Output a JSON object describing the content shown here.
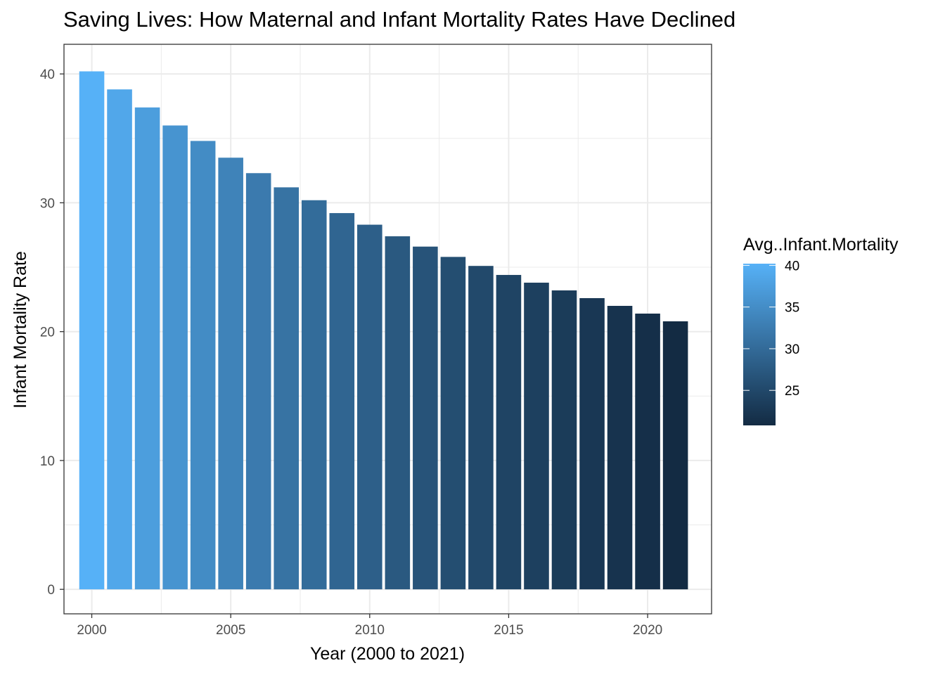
{
  "chart_data": {
    "type": "bar",
    "title": "Saving Lives: How Maternal and Infant Mortality Rates Have Declined",
    "xlabel": "Year (2000 to 2021)",
    "ylabel": "Infant Mortality Rate",
    "x": [
      2000,
      2001,
      2002,
      2003,
      2004,
      2005,
      2006,
      2007,
      2008,
      2009,
      2010,
      2011,
      2012,
      2013,
      2014,
      2015,
      2016,
      2017,
      2018,
      2019,
      2020,
      2021
    ],
    "values": [
      40.2,
      38.8,
      37.4,
      36.0,
      34.8,
      33.5,
      32.3,
      31.2,
      30.2,
      29.2,
      28.3,
      27.4,
      26.6,
      25.8,
      25.1,
      24.4,
      23.8,
      23.2,
      22.6,
      22.0,
      21.4,
      20.8
    ],
    "xlim": [
      1999,
      2022.3
    ],
    "ylim": [
      -1.9,
      42.3
    ],
    "x_ticks": [
      2000,
      2005,
      2010,
      2015,
      2020
    ],
    "x_tick_labels": [
      "2000",
      "2005",
      "2010",
      "2015",
      "2020"
    ],
    "y_ticks": [
      0,
      10,
      20,
      30,
      40
    ],
    "y_tick_labels": [
      "0",
      "10",
      "20",
      "30",
      "40"
    ],
    "grid": true,
    "legend": {
      "title": "Avg..Infant.Mortality",
      "placement": "right",
      "range": [
        20.8,
        40.2
      ],
      "breaks": [
        40,
        35,
        30,
        25
      ],
      "labels": [
        "40",
        "35",
        "30",
        "25"
      ],
      "color_low": "#132B43",
      "color_high": "#56B1F7"
    }
  }
}
